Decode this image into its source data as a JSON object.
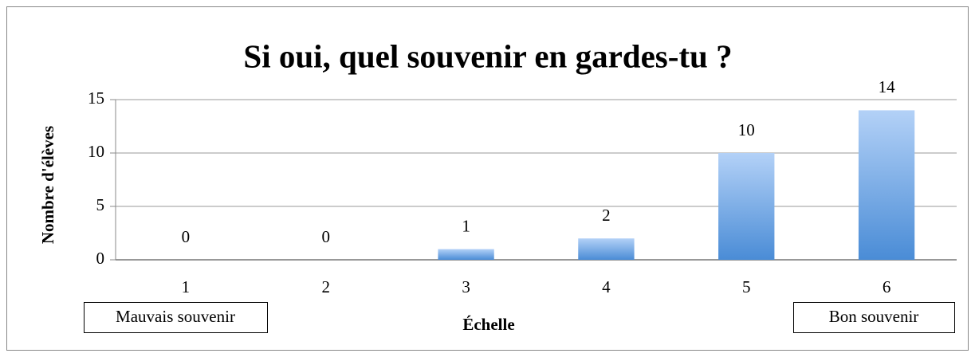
{
  "chart_data": {
    "type": "bar",
    "title": "Si oui, quel souvenir en gardes-tu ?",
    "categories": [
      "1",
      "2",
      "3",
      "4",
      "5",
      "6"
    ],
    "values": [
      0,
      0,
      1,
      2,
      10,
      14
    ],
    "color": "#4a8cd6",
    "ylim": [
      0,
      15
    ],
    "yticks": [
      0,
      5,
      10,
      15
    ],
    "grid": true,
    "x_label": "Échelle",
    "y_label": "Nombre d'élèves",
    "annotations": [
      "Mauvais souvenir",
      "Bon souvenir"
    ]
  }
}
